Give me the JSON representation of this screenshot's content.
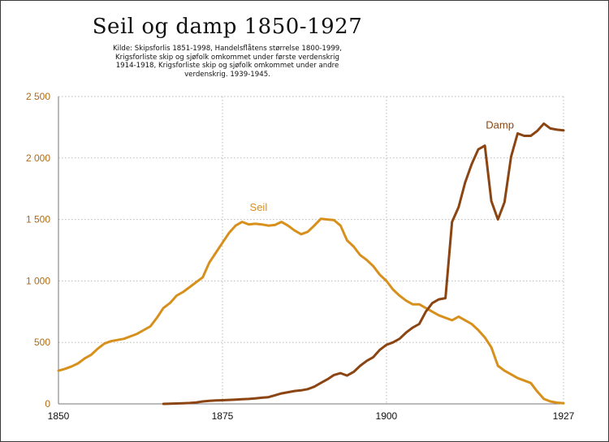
{
  "chart_data": {
    "type": "line",
    "title": "Seil og damp 1850-1927",
    "subtitle": "Kilde: Skipsforlis 1851-1998, Handelsflåtens størrelse 1800-1999, Krigsforliste skip og sjøfolk omkommet under første verdenskrig 1914-1918, Krigsforliste skip og sjøfolk omkommet under andre verdenskrig. 1939-1945.",
    "xlabel": "",
    "ylabel": "",
    "xlim": [
      1850,
      1927
    ],
    "ylim": [
      0,
      2500
    ],
    "x_ticks": [
      1850,
      1875,
      1900,
      1927
    ],
    "x_tick_labels": [
      "1850",
      "1875",
      "1900",
      "1927"
    ],
    "y_ticks": [
      0,
      500,
      1000,
      1500,
      2000,
      2500
    ],
    "y_tick_labels": [
      "0",
      "500",
      "1 000",
      "1 500",
      "2 000",
      "2 500"
    ],
    "grid": true,
    "series": [
      {
        "name": "Seil",
        "color": "#d8901c",
        "label_pos": [
          1880.5,
          1570
        ],
        "x": [
          1850,
          1851,
          1852,
          1853,
          1854,
          1855,
          1856,
          1857,
          1858,
          1859,
          1860,
          1861,
          1862,
          1863,
          1864,
          1865,
          1866,
          1867,
          1868,
          1869,
          1870,
          1871,
          1872,
          1873,
          1874,
          1875,
          1876,
          1877,
          1878,
          1879,
          1880,
          1881,
          1882,
          1883,
          1884,
          1885,
          1886,
          1887,
          1888,
          1889,
          1890,
          1891,
          1892,
          1893,
          1894,
          1895,
          1896,
          1897,
          1898,
          1899,
          1900,
          1901,
          1902,
          1903,
          1904,
          1905,
          1906,
          1907,
          1908,
          1909,
          1910,
          1911,
          1912,
          1913,
          1914,
          1915,
          1916,
          1917,
          1918,
          1919,
          1920,
          1921,
          1922,
          1923,
          1924,
          1925,
          1926,
          1927
        ],
        "y": [
          270,
          285,
          305,
          330,
          370,
          400,
          450,
          490,
          510,
          520,
          530,
          550,
          570,
          600,
          630,
          700,
          780,
          820,
          880,
          910,
          950,
          990,
          1030,
          1150,
          1230,
          1310,
          1390,
          1450,
          1480,
          1460,
          1465,
          1460,
          1450,
          1455,
          1480,
          1450,
          1410,
          1380,
          1400,
          1450,
          1505,
          1500,
          1495,
          1450,
          1330,
          1280,
          1210,
          1170,
          1120,
          1050,
          1000,
          930,
          880,
          840,
          810,
          810,
          780,
          750,
          720,
          700,
          680,
          710,
          680,
          650,
          600,
          540,
          460,
          310,
          270,
          240,
          210,
          190,
          170,
          100,
          40,
          20,
          10,
          5
        ]
      },
      {
        "name": "Damp",
        "color": "#8b4513",
        "label_pos": [
          1917.3,
          2240
        ],
        "x": [
          1866,
          1867,
          1868,
          1869,
          1870,
          1871,
          1872,
          1873,
          1874,
          1875,
          1876,
          1877,
          1878,
          1879,
          1880,
          1881,
          1882,
          1883,
          1884,
          1885,
          1886,
          1887,
          1888,
          1889,
          1890,
          1891,
          1892,
          1893,
          1894,
          1895,
          1896,
          1897,
          1898,
          1899,
          1900,
          1901,
          1902,
          1903,
          1904,
          1905,
          1906,
          1907,
          1908,
          1909,
          1910,
          1911,
          1912,
          1913,
          1914,
          1915,
          1916,
          1917,
          1918,
          1919,
          1920,
          1921,
          1922,
          1923,
          1924,
          1925,
          1926,
          1927
        ],
        "y": [
          0,
          2,
          3,
          5,
          7,
          12,
          20,
          25,
          28,
          30,
          32,
          35,
          38,
          40,
          45,
          50,
          55,
          70,
          85,
          95,
          105,
          110,
          120,
          140,
          170,
          200,
          235,
          250,
          230,
          260,
          310,
          350,
          380,
          440,
          480,
          500,
          530,
          580,
          620,
          650,
          750,
          820,
          850,
          860,
          1480,
          1600,
          1800,
          1950,
          2070,
          2100,
          1650,
          1500,
          1640,
          2010,
          2200,
          2180,
          2180,
          2220,
          2280,
          2240,
          2230,
          2225
        ]
      }
    ]
  }
}
